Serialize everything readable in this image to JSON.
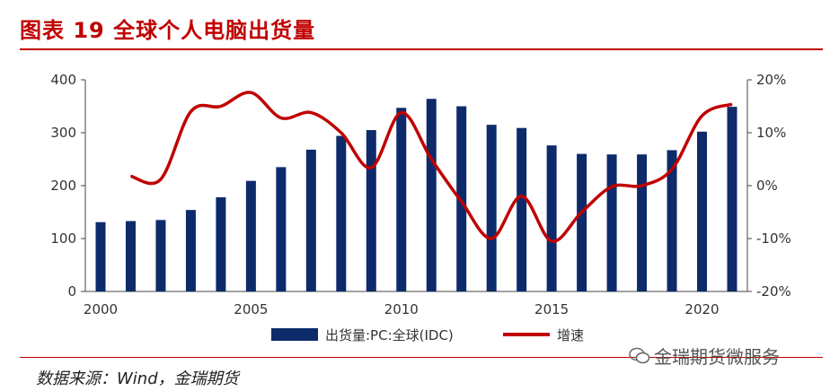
{
  "header": {
    "title": "图表 19 全球个人电脑出货量"
  },
  "source": {
    "text": "数据来源：Wind，金瑞期货"
  },
  "watermark": {
    "text": "金瑞期货微服务"
  },
  "colors": {
    "accent": "#c00000",
    "bars": "#0d2a6b",
    "line": "#c00000"
  },
  "chart_data": {
    "type": "bar",
    "x": [
      2000,
      2001,
      2002,
      2003,
      2004,
      2005,
      2006,
      2007,
      2008,
      2009,
      2010,
      2011,
      2012,
      2013,
      2014,
      2015,
      2016,
      2017,
      2018,
      2019,
      2020,
      2021
    ],
    "series": [
      {
        "name": "出货量:PC:全球(IDC)",
        "type": "bar",
        "axis": "left",
        "values": [
          131,
          133,
          135,
          154,
          178,
          209,
          235,
          268,
          294,
          305,
          347,
          364,
          350,
          315,
          309,
          276,
          260,
          259,
          259,
          267,
          302,
          349
        ]
      },
      {
        "name": "增速",
        "type": "line",
        "axis": "right",
        "values": [
          null,
          1.8,
          1.2,
          14.0,
          15.0,
          17.6,
          12.8,
          13.8,
          10.0,
          3.4,
          13.8,
          5.0,
          -3.0,
          -10.0,
          -2.0,
          -10.5,
          -5.0,
          -0.2,
          0.0,
          3.1,
          13.2,
          15.4
        ]
      }
    ],
    "y_left": {
      "min": 0,
      "max": 400,
      "ticks": [
        0,
        100,
        200,
        300,
        400
      ]
    },
    "y_right": {
      "min": -20,
      "max": 20,
      "ticks": [
        "-20%",
        "-10%",
        "0%",
        "10%",
        "20%"
      ]
    },
    "x_ticks": [
      "2000",
      "2005",
      "2010",
      "2015",
      "2020"
    ],
    "legend_position": "bottom-center",
    "grid": false
  }
}
